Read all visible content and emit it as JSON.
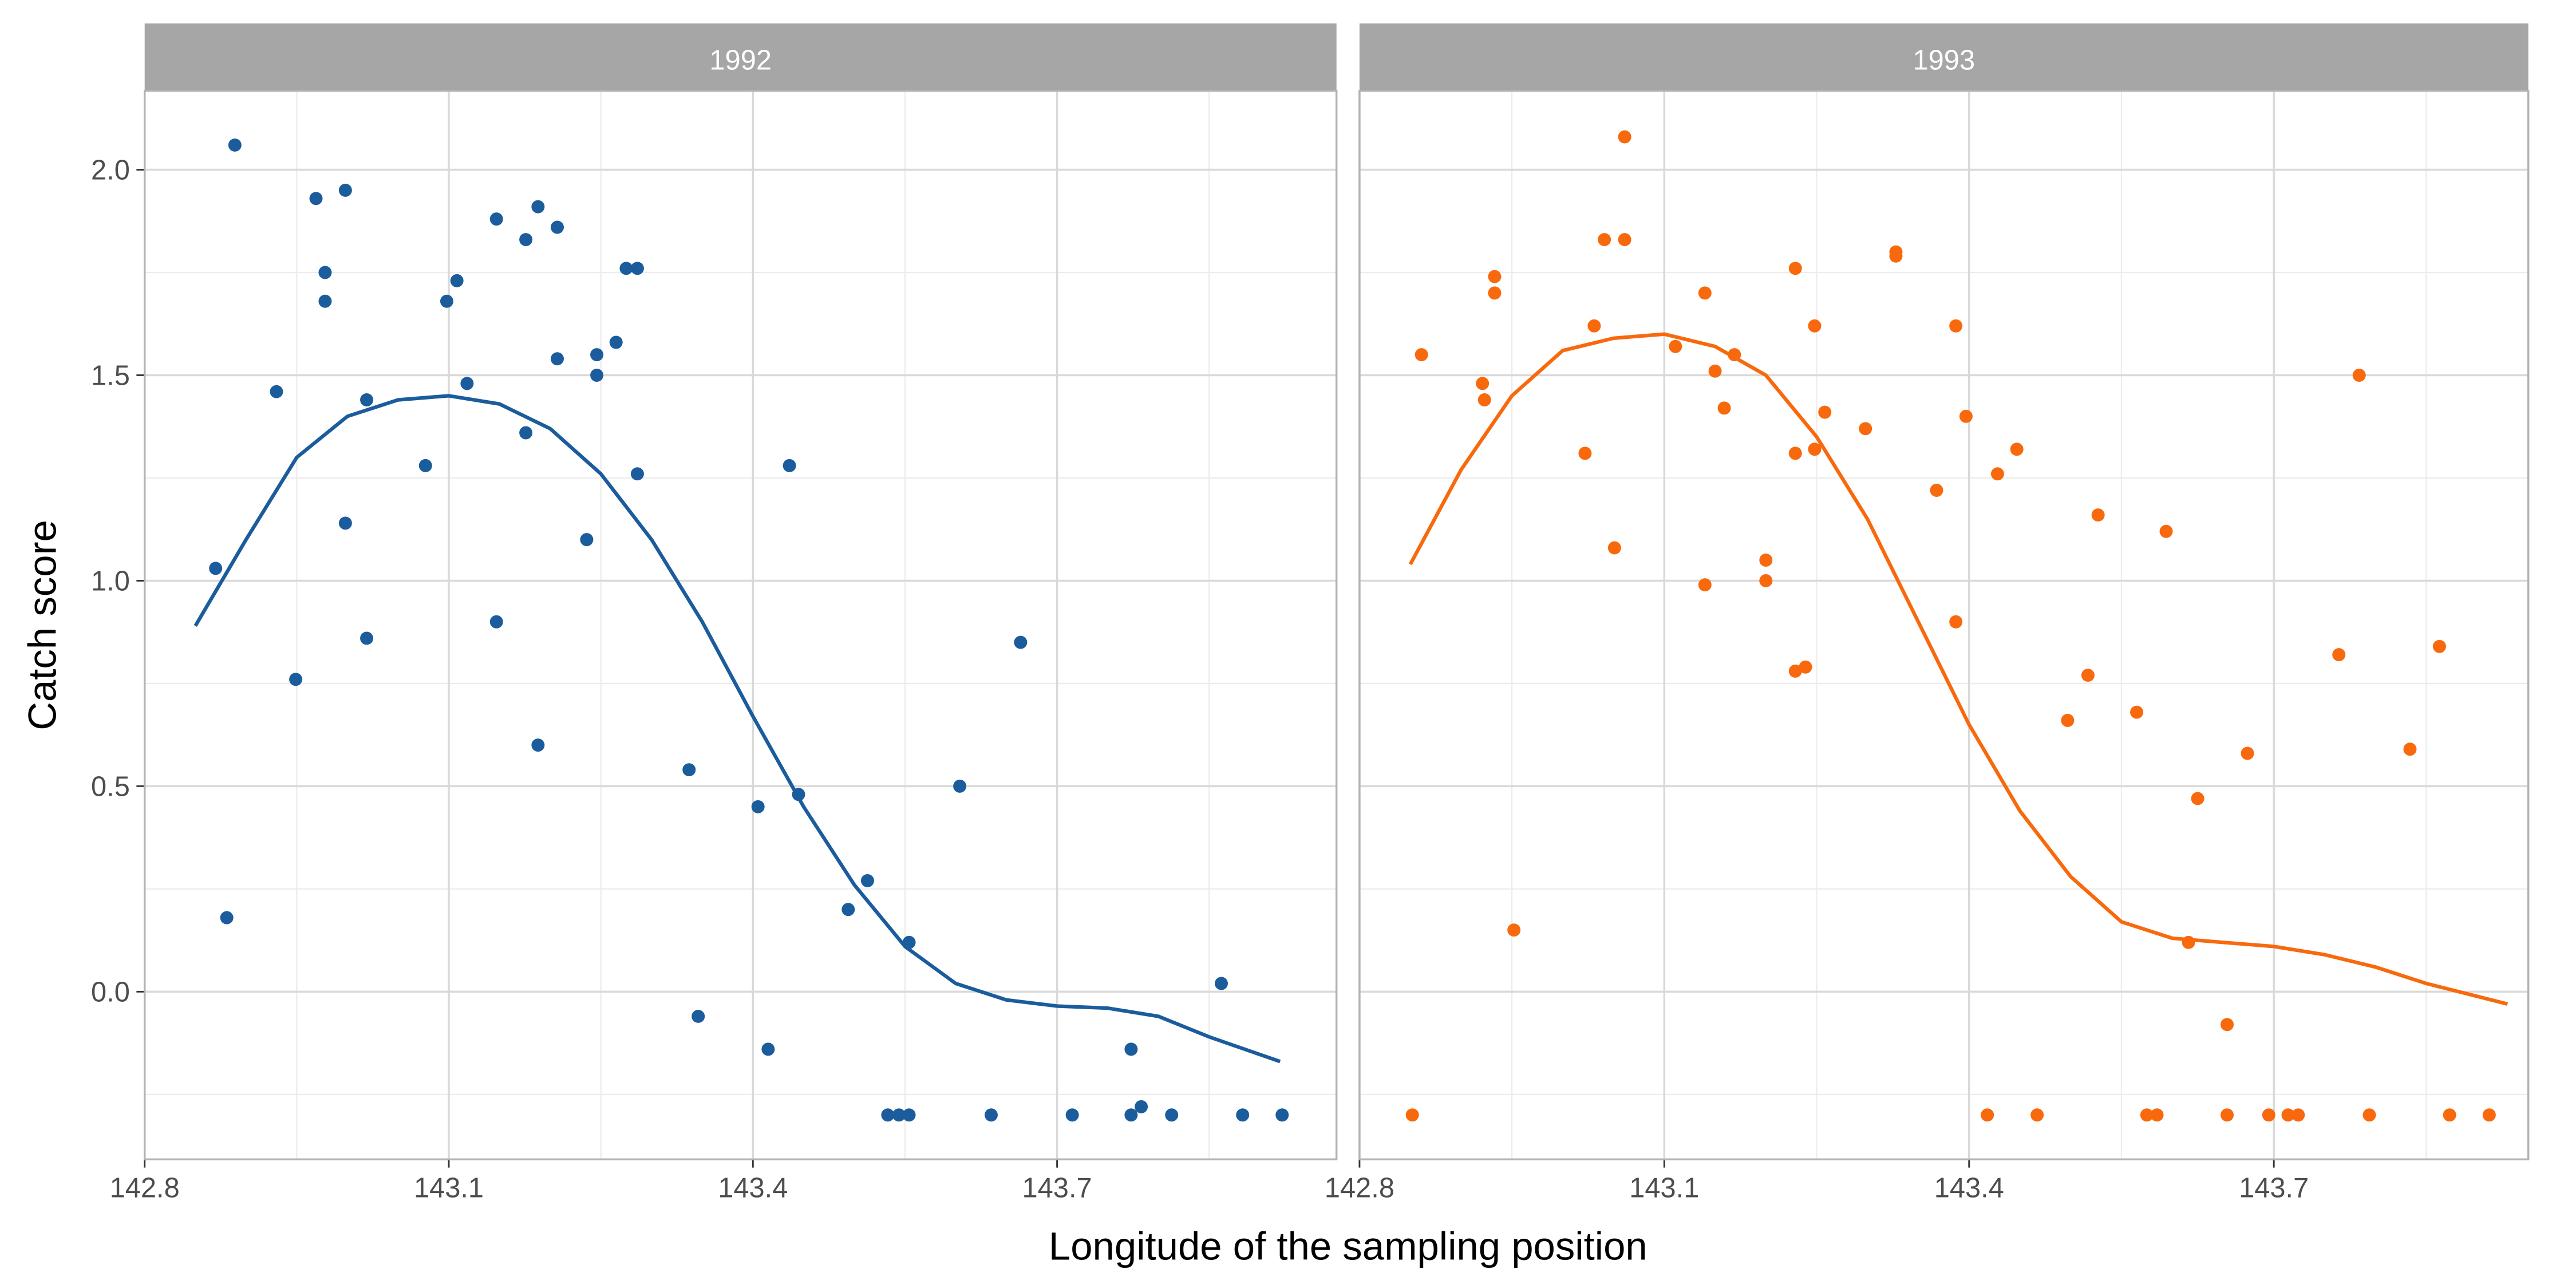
{
  "chart_data": {
    "type": "scatter",
    "xlabel": "Longitude of the sampling position",
    "ylabel": "Catch score",
    "xlim": [
      142.8,
      143.98
    ],
    "ylim": [
      -0.41,
      2.19
    ],
    "x_ticks": [
      "142.8",
      "143.1",
      "143.4",
      "143.7"
    ],
    "y_ticks": [
      "0.0",
      "0.5",
      "1.0",
      "1.5",
      "2.0"
    ],
    "grid": true,
    "facets": [
      {
        "label": "1992",
        "color": "#1b5c9c",
        "points": [
          [
            142.87,
            1.03
          ],
          [
            142.881,
            0.18
          ],
          [
            142.889,
            2.06
          ],
          [
            142.93,
            1.46
          ],
          [
            142.949,
            0.76
          ],
          [
            142.969,
            1.93
          ],
          [
            142.978,
            1.75
          ],
          [
            142.978,
            1.68
          ],
          [
            142.998,
            1.95
          ],
          [
            142.998,
            1.14
          ],
          [
            143.019,
            1.44
          ],
          [
            143.019,
            0.86
          ],
          [
            143.077,
            1.28
          ],
          [
            143.098,
            1.68
          ],
          [
            143.108,
            1.73
          ],
          [
            143.118,
            1.48
          ],
          [
            143.147,
            1.88
          ],
          [
            143.147,
            0.9
          ],
          [
            143.176,
            1.83
          ],
          [
            143.176,
            1.36
          ],
          [
            143.188,
            1.91
          ],
          [
            143.188,
            0.6
          ],
          [
            143.207,
            1.86
          ],
          [
            143.207,
            1.54
          ],
          [
            143.236,
            1.1
          ],
          [
            143.246,
            1.55
          ],
          [
            143.246,
            1.5
          ],
          [
            143.265,
            1.58
          ],
          [
            143.275,
            1.76
          ],
          [
            143.286,
            1.76
          ],
          [
            143.286,
            1.26
          ],
          [
            143.337,
            0.54
          ],
          [
            143.346,
            -0.06
          ],
          [
            143.405,
            0.45
          ],
          [
            143.415,
            -0.14
          ],
          [
            143.436,
            1.28
          ],
          [
            143.445,
            0.48
          ],
          [
            143.494,
            0.2
          ],
          [
            143.513,
            0.27
          ],
          [
            143.533,
            -0.3
          ],
          [
            143.544,
            -0.3
          ],
          [
            143.554,
            -0.3
          ],
          [
            143.554,
            0.12
          ],
          [
            143.604,
            0.5
          ],
          [
            143.635,
            -0.3
          ],
          [
            143.664,
            0.85
          ],
          [
            143.715,
            -0.3
          ],
          [
            143.773,
            -0.3
          ],
          [
            143.773,
            -0.14
          ],
          [
            143.783,
            -0.28
          ],
          [
            143.813,
            -0.3
          ],
          [
            143.862,
            0.02
          ],
          [
            143.883,
            -0.3
          ],
          [
            143.922,
            -0.3
          ]
        ],
        "smooth": [
          [
            142.85,
            0.89
          ],
          [
            142.9,
            1.1
          ],
          [
            142.95,
            1.3
          ],
          [
            143.0,
            1.4
          ],
          [
            143.05,
            1.44
          ],
          [
            143.1,
            1.45
          ],
          [
            143.15,
            1.43
          ],
          [
            143.2,
            1.37
          ],
          [
            143.25,
            1.26
          ],
          [
            143.3,
            1.1
          ],
          [
            143.35,
            0.9
          ],
          [
            143.4,
            0.67
          ],
          [
            143.45,
            0.45
          ],
          [
            143.5,
            0.26
          ],
          [
            143.55,
            0.11
          ],
          [
            143.6,
            0.02
          ],
          [
            143.65,
            -0.02
          ],
          [
            143.7,
            -0.035
          ],
          [
            143.75,
            -0.04
          ],
          [
            143.8,
            -0.06
          ],
          [
            143.85,
            -0.11
          ],
          [
            143.92,
            -0.17
          ]
        ]
      },
      {
        "label": "1993",
        "color": "#f8690d",
        "points": [
          [
            142.852,
            -0.3
          ],
          [
            142.861,
            1.55
          ],
          [
            142.921,
            1.48
          ],
          [
            142.923,
            1.44
          ],
          [
            142.933,
            1.74
          ],
          [
            142.933,
            1.7
          ],
          [
            142.952,
            0.15
          ],
          [
            143.022,
            1.31
          ],
          [
            143.031,
            1.62
          ],
          [
            143.041,
            1.83
          ],
          [
            143.051,
            1.08
          ],
          [
            143.061,
            1.83
          ],
          [
            143.061,
            2.08
          ],
          [
            143.111,
            1.57
          ],
          [
            143.14,
            1.7
          ],
          [
            143.14,
            0.99
          ],
          [
            143.15,
            1.51
          ],
          [
            143.159,
            1.42
          ],
          [
            143.169,
            1.55
          ],
          [
            143.2,
            1.05
          ],
          [
            143.2,
            1.0
          ],
          [
            143.229,
            1.76
          ],
          [
            143.229,
            1.31
          ],
          [
            143.229,
            0.78
          ],
          [
            143.239,
            0.79
          ],
          [
            143.248,
            1.62
          ],
          [
            143.248,
            1.32
          ],
          [
            143.258,
            1.41
          ],
          [
            143.298,
            1.37
          ],
          [
            143.328,
            1.8
          ],
          [
            143.328,
            1.79
          ],
          [
            143.368,
            1.22
          ],
          [
            143.387,
            1.62
          ],
          [
            143.387,
            0.9
          ],
          [
            143.397,
            1.4
          ],
          [
            143.418,
            -0.3
          ],
          [
            143.428,
            1.26
          ],
          [
            143.447,
            1.32
          ],
          [
            143.467,
            -0.3
          ],
          [
            143.497,
            0.66
          ],
          [
            143.517,
            0.77
          ],
          [
            143.527,
            1.16
          ],
          [
            143.565,
            0.68
          ],
          [
            143.575,
            -0.3
          ],
          [
            143.585,
            -0.3
          ],
          [
            143.594,
            1.12
          ],
          [
            143.616,
            0.12
          ],
          [
            143.625,
            0.47
          ],
          [
            143.654,
            -0.08
          ],
          [
            143.654,
            -0.3
          ],
          [
            143.674,
            0.58
          ],
          [
            143.695,
            -0.3
          ],
          [
            143.714,
            -0.3
          ],
          [
            143.724,
            -0.3
          ],
          [
            143.764,
            0.82
          ],
          [
            143.784,
            1.5
          ],
          [
            143.794,
            -0.3
          ],
          [
            143.834,
            0.59
          ],
          [
            143.863,
            0.84
          ],
          [
            143.873,
            -0.3
          ],
          [
            143.912,
            -0.3
          ]
        ],
        "smooth": [
          [
            142.85,
            1.04
          ],
          [
            142.9,
            1.27
          ],
          [
            142.95,
            1.45
          ],
          [
            143.0,
            1.56
          ],
          [
            143.05,
            1.59
          ],
          [
            143.1,
            1.6
          ],
          [
            143.15,
            1.57
          ],
          [
            143.2,
            1.5
          ],
          [
            143.25,
            1.35
          ],
          [
            143.3,
            1.15
          ],
          [
            143.35,
            0.9
          ],
          [
            143.4,
            0.65
          ],
          [
            143.45,
            0.44
          ],
          [
            143.5,
            0.28
          ],
          [
            143.55,
            0.17
          ],
          [
            143.6,
            0.13
          ],
          [
            143.65,
            0.12
          ],
          [
            143.7,
            0.11
          ],
          [
            143.75,
            0.09
          ],
          [
            143.8,
            0.06
          ],
          [
            143.85,
            0.02
          ],
          [
            143.93,
            -0.03
          ]
        ]
      }
    ]
  },
  "style": {
    "strip_bg": "#a6a6a6",
    "grid_major": "#d9d9d9",
    "grid_minor": "#ececec"
  }
}
